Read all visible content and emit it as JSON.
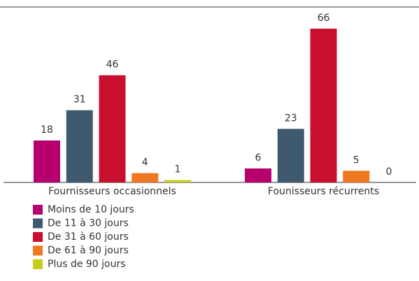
{
  "chart_data": {
    "type": "bar",
    "categories": [
      "Fournisseurs occasionnels",
      "Founisseurs récurrents"
    ],
    "series": [
      {
        "name": "Moins de 10 jours",
        "color": "#b5006e",
        "values": [
          18,
          6
        ]
      },
      {
        "name": "De 11 à 30 jours",
        "color": "#3f5a6e",
        "values": [
          31,
          23
        ]
      },
      {
        "name": "De 31 à 60 jours",
        "color": "#c8102e",
        "values": [
          46,
          66
        ]
      },
      {
        "name": "De 61 à 90 jours",
        "color": "#f07820",
        "values": [
          4,
          5
        ]
      },
      {
        "name": "Plus de 90 jours",
        "color": "#c4cc1c",
        "values": [
          1,
          0
        ]
      }
    ],
    "legend": "bottom-left"
  }
}
